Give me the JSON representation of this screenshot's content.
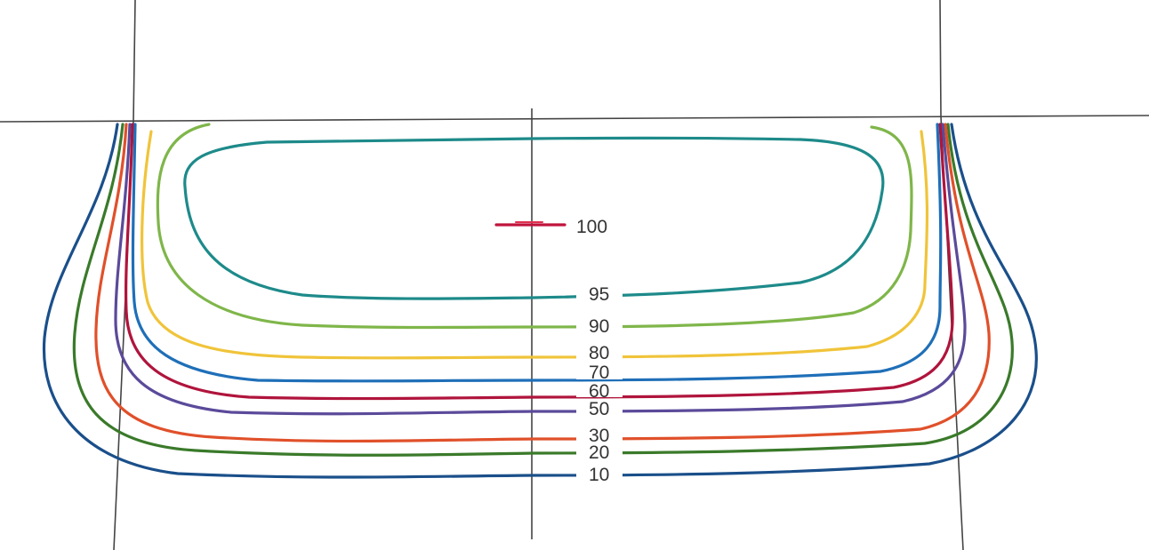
{
  "diagram": {
    "type": "isodose-contour-plot",
    "grid": true,
    "contours": [
      {
        "level": "100",
        "label": "100",
        "color": "#c0143c"
      },
      {
        "level": "95",
        "label": "95",
        "color": "#1e8a8a"
      },
      {
        "level": "90",
        "label": "90",
        "color": "#7fb64a"
      },
      {
        "level": "80",
        "label": "80",
        "color": "#f0c43a"
      },
      {
        "level": "70",
        "label": "70",
        "color": "#1f6fb8"
      },
      {
        "level": "60",
        "label": "60",
        "color": "#b0143c"
      },
      {
        "level": "50",
        "label": "50",
        "color": "#5b4a9a"
      },
      {
        "level": "30",
        "label": "30",
        "color": "#e0502a"
      },
      {
        "level": "20",
        "label": "20",
        "color": "#3a7a2a"
      },
      {
        "level": "10",
        "label": "10",
        "color": "#1a4f8a"
      }
    ]
  }
}
